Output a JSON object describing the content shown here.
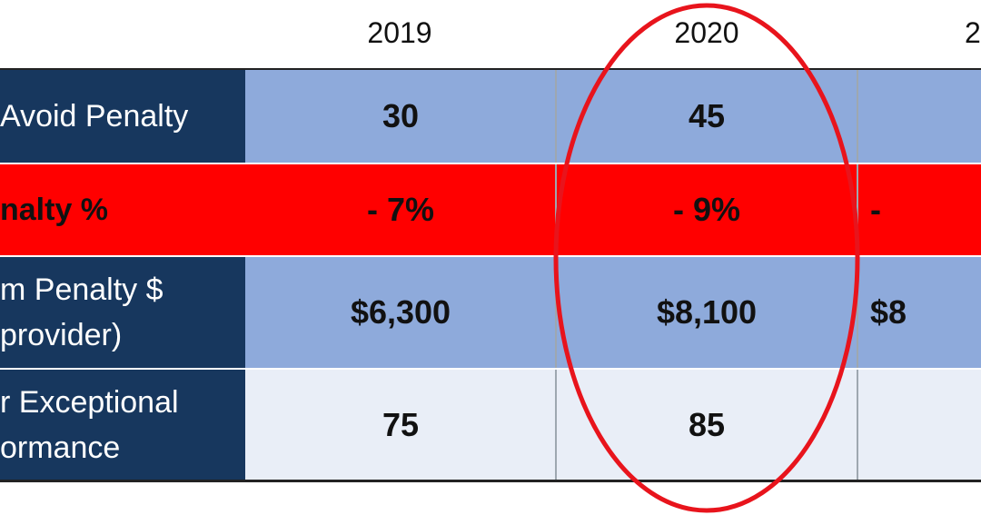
{
  "years": [
    "2019",
    "2020",
    "2"
  ],
  "rows": [
    {
      "label": "Avoid Penalty",
      "values": [
        "30",
        "45",
        ""
      ]
    },
    {
      "label": "nalty %",
      "values": [
        "- 7%",
        "- 9%",
        "-"
      ]
    },
    {
      "label": "m Penalty $\nprovider)",
      "values": [
        "$6,300",
        "$8,100",
        "$8"
      ]
    },
    {
      "label": "r Exceptional\normance",
      "values": [
        "75",
        "85",
        ""
      ]
    }
  ],
  "colors": {
    "label_bg": "#17375e",
    "row_blue": "#8eaadb",
    "row_red": "#ff0000",
    "row_light": "#e9eef7",
    "highlight_circle": "#e8141c"
  }
}
